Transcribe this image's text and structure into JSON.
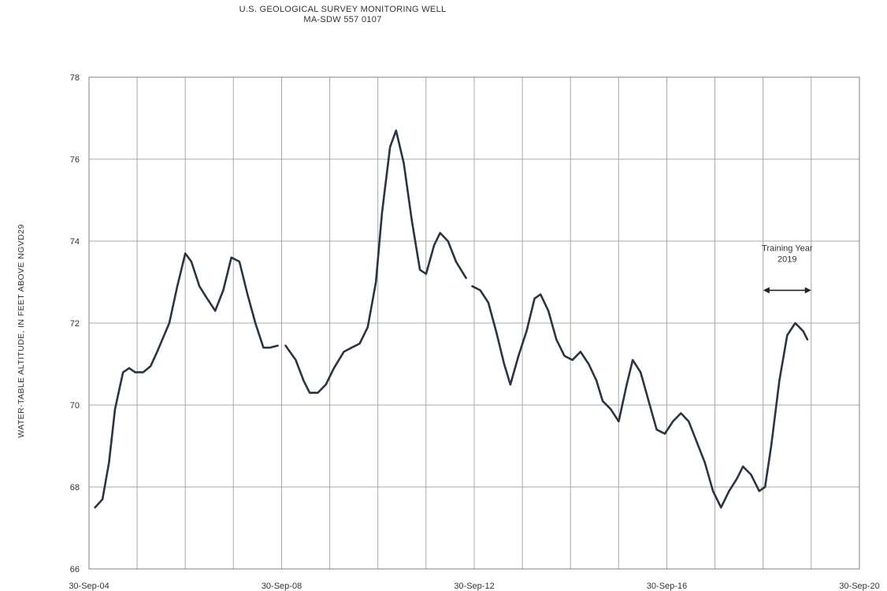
{
  "chart_data": {
    "type": "line",
    "title": "U.S. GEOLOGICAL SURVEY MONITORING WELL",
    "subtitle": "MA-SDW 557 0107",
    "xlabel": "",
    "ylabel": "WATER-TABLE ALTITUDE, IN FEET ABOVE NGVD29",
    "x_tick_labels": [
      "30-Sep-04",
      "30-Sep-08",
      "30-Sep-12",
      "30-Sep-16",
      "30-Sep-20"
    ],
    "y_tick_labels": [
      "66",
      "68",
      "70",
      "72",
      "74",
      "76",
      "78"
    ],
    "xlim": [
      "2004-09-30",
      "2020-09-30"
    ],
    "ylim": [
      66,
      78
    ],
    "grid": true,
    "series": [
      {
        "color": "#2b3442",
        "segments": [
          [
            [
              "2004-11-15",
              67.5
            ],
            [
              "2005-01-10",
              67.7
            ],
            [
              "2005-03-01",
              68.6
            ],
            [
              "2005-04-15",
              69.9
            ],
            [
              "2005-06-15",
              70.8
            ],
            [
              "2005-08-01",
              70.9
            ],
            [
              "2005-09-15",
              70.8
            ],
            [
              "2005-11-15",
              70.8
            ],
            [
              "2006-01-10",
              70.95
            ],
            [
              "2006-03-01",
              71.3
            ],
            [
              "2006-06-01",
              72.0
            ],
            [
              "2006-08-01",
              72.9
            ],
            [
              "2006-09-30",
              73.7
            ],
            [
              "2006-11-15",
              73.5
            ],
            [
              "2007-01-15",
              72.9
            ],
            [
              "2007-03-15",
              72.6
            ],
            [
              "2007-05-15",
              72.3
            ],
            [
              "2007-07-15",
              72.8
            ],
            [
              "2007-09-15",
              73.6
            ],
            [
              "2007-11-15",
              73.5
            ],
            [
              "2008-01-15",
              72.7
            ],
            [
              "2008-03-15",
              72.0
            ],
            [
              "2008-05-15",
              71.4
            ],
            [
              "2008-07-01",
              71.4
            ],
            [
              "2008-09-01",
              71.45
            ]
          ],
          [
            [
              "2008-10-30",
              71.45
            ],
            [
              "2009-01-15",
              71.1
            ],
            [
              "2009-03-15",
              70.6
            ],
            [
              "2009-05-01",
              70.3
            ],
            [
              "2009-07-01",
              70.3
            ],
            [
              "2009-09-01",
              70.5
            ],
            [
              "2009-11-01",
              70.9
            ],
            [
              "2010-01-15",
              71.3
            ],
            [
              "2010-03-15",
              71.4
            ],
            [
              "2010-05-15",
              71.5
            ],
            [
              "2010-07-15",
              71.9
            ],
            [
              "2010-09-15",
              73.0
            ],
            [
              "2010-11-01",
              74.7
            ],
            [
              "2011-01-01",
              76.3
            ],
            [
              "2011-02-15",
              76.7
            ],
            [
              "2011-04-15",
              75.9
            ],
            [
              "2011-06-15",
              74.5
            ],
            [
              "2011-08-15",
              73.3
            ],
            [
              "2011-10-01",
              73.2
            ],
            [
              "2011-12-01",
              73.9
            ],
            [
              "2012-01-15",
              74.2
            ],
            [
              "2012-03-15",
              74.0
            ],
            [
              "2012-05-15",
              73.5
            ],
            [
              "2012-07-30",
              73.1
            ]
          ],
          [
            [
              "2012-09-15",
              72.9
            ],
            [
              "2012-11-15",
              72.8
            ],
            [
              "2013-01-15",
              72.5
            ],
            [
              "2013-03-15",
              71.8
            ],
            [
              "2013-05-15",
              71.0
            ],
            [
              "2013-07-01",
              70.5
            ],
            [
              "2013-09-01",
              71.2
            ],
            [
              "2013-11-01",
              71.8
            ],
            [
              "2014-01-01",
              72.6
            ],
            [
              "2014-02-15",
              72.7
            ],
            [
              "2014-04-15",
              72.3
            ],
            [
              "2014-06-15",
              71.6
            ],
            [
              "2014-08-15",
              71.2
            ],
            [
              "2014-10-15",
              71.1
            ],
            [
              "2014-12-15",
              71.3
            ],
            [
              "2015-02-15",
              71.0
            ],
            [
              "2015-04-15",
              70.6
            ],
            [
              "2015-06-01",
              70.1
            ],
            [
              "2015-08-01",
              69.9
            ],
            [
              "2015-10-01",
              69.6
            ],
            [
              "2015-12-01",
              70.5
            ],
            [
              "2016-01-15",
              71.1
            ],
            [
              "2016-03-15",
              70.8
            ],
            [
              "2016-05-15",
              70.1
            ],
            [
              "2016-07-15",
              69.4
            ],
            [
              "2016-09-15",
              69.3
            ],
            [
              "2016-11-15",
              69.6
            ],
            [
              "2017-01-15",
              69.8
            ],
            [
              "2017-03-15",
              69.6
            ],
            [
              "2017-05-15",
              69.1
            ],
            [
              "2017-07-15",
              68.6
            ],
            [
              "2017-09-15",
              67.9
            ],
            [
              "2017-11-15",
              67.5
            ],
            [
              "2018-01-15",
              67.9
            ],
            [
              "2018-03-15",
              68.2
            ],
            [
              "2018-05-01",
              68.5
            ],
            [
              "2018-07-01",
              68.3
            ],
            [
              "2018-09-01",
              67.9
            ],
            [
              "2018-10-15",
              68.0
            ],
            [
              "2018-12-01",
              69.0
            ],
            [
              "2019-02-01",
              70.6
            ],
            [
              "2019-04-01",
              71.7
            ],
            [
              "2019-06-01",
              72.0
            ],
            [
              "2019-08-01",
              71.8
            ],
            [
              "2019-09-01",
              71.6
            ]
          ]
        ]
      }
    ],
    "annotations": [
      {
        "text_lines": [
          "Training Year",
          "2019"
        ],
        "arrow_from": "2018-10-01",
        "arrow_to": "2019-09-30",
        "arrow_y": 72.8
      }
    ]
  }
}
